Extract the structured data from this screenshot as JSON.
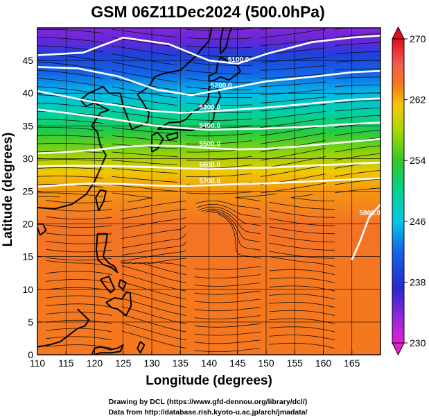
{
  "title": "GSM 06Z11Dec2024 (500.0hPa)",
  "footer": {
    "line1": "Drawing by DCL (https://www.gfd-dennou.org/library/dcl/)",
    "line2": "Data from http://database.rish.kyoto-u.ac.jp/arch/jmadata/"
  },
  "chart_data": {
    "type": "heatmap",
    "title": "GSM 06Z11Dec2024 (500.0hPa)",
    "xlabel": "Longitude (degrees)",
    "ylabel": "Latitude  (degrees)",
    "xlim": [
      110,
      170
    ],
    "ylim": [
      0,
      50
    ],
    "x_ticks": [
      110,
      115,
      120,
      125,
      130,
      135,
      140,
      145,
      150,
      155,
      160,
      165
    ],
    "y_ticks": [
      0,
      5,
      10,
      15,
      20,
      25,
      30,
      35,
      40,
      45
    ],
    "grid": true,
    "colorbar": {
      "min": 230,
      "max": 270,
      "ticks": [
        230,
        238,
        246,
        254,
        262,
        270
      ],
      "placement": "right"
    },
    "temperature_by_latitude": {
      "lat": [
        0,
        10,
        20,
        25,
        28,
        31,
        34,
        37,
        40,
        43,
        46,
        48,
        50
      ],
      "value": [
        264,
        264,
        264.5,
        263,
        261,
        257,
        253,
        249,
        245.5,
        242,
        239,
        235,
        234
      ]
    },
    "contours": [
      {
        "label": "5100.0",
        "lon": [
          110,
          118,
          125,
          133,
          140,
          145,
          150,
          158,
          165,
          170
        ],
        "lat": [
          45.8,
          46.2,
          48.5,
          47.5,
          45,
          44.5,
          46,
          47.8,
          48.5,
          48.8
        ]
      },
      {
        "label": "5200.0",
        "lon": [
          110,
          117,
          124,
          131,
          137,
          142,
          150,
          158,
          165,
          170
        ],
        "lat": [
          44,
          43.8,
          42.6,
          40.5,
          39.7,
          40.5,
          41.8,
          42.5,
          43.2,
          43.4
        ]
      },
      {
        "label": "5300.0",
        "lon": [
          110,
          115,
          120,
          125,
          130,
          135,
          140,
          145,
          150,
          155,
          160,
          165,
          170
        ],
        "lat": [
          40.3,
          39.5,
          38.6,
          38,
          37.3,
          37,
          37.2,
          37.5,
          37.8,
          38.2,
          38.6,
          39,
          39.2
        ]
      },
      {
        "label": "5400.0",
        "lon": [
          110,
          115,
          120,
          125,
          130,
          135,
          140,
          145,
          150,
          155,
          160,
          165,
          170
        ],
        "lat": [
          37.5,
          37,
          36.4,
          35.8,
          35.1,
          34.7,
          34.4,
          34.5,
          34.6,
          34.8,
          35,
          35.3,
          35.5
        ]
      },
      {
        "label": "5500.0",
        "lon": [
          110,
          115,
          120,
          125,
          130,
          135,
          140,
          145,
          150,
          155,
          160,
          165,
          170
        ],
        "lat": [
          30.8,
          31,
          31.3,
          31.8,
          32,
          31.9,
          31.6,
          31.4,
          31.5,
          31.8,
          32.2,
          32.6,
          33
        ]
      },
      {
        "label": "5600.0",
        "lon": [
          110,
          115,
          120,
          125,
          130,
          135,
          140,
          145,
          150,
          155,
          160,
          165,
          170
        ],
        "lat": [
          28.8,
          28.9,
          28.9,
          28.8,
          28.7,
          28.5,
          28.4,
          28.5,
          28.6,
          28.8,
          29,
          29.2,
          29.4
        ]
      },
      {
        "label": "5700.0",
        "lon": [
          110,
          115,
          120,
          125,
          130,
          135,
          140,
          145,
          150,
          155,
          160,
          165,
          170
        ],
        "lat": [
          25.7,
          26,
          26.2,
          26.1,
          25.9,
          25.8,
          25.9,
          26.1,
          26.2,
          26.4,
          26.6,
          26.8,
          27
        ]
      },
      {
        "label": "5800.0",
        "lon": [
          165,
          166.5,
          168,
          170
        ],
        "lat": [
          14.5,
          17.5,
          21,
          23
        ]
      }
    ]
  }
}
